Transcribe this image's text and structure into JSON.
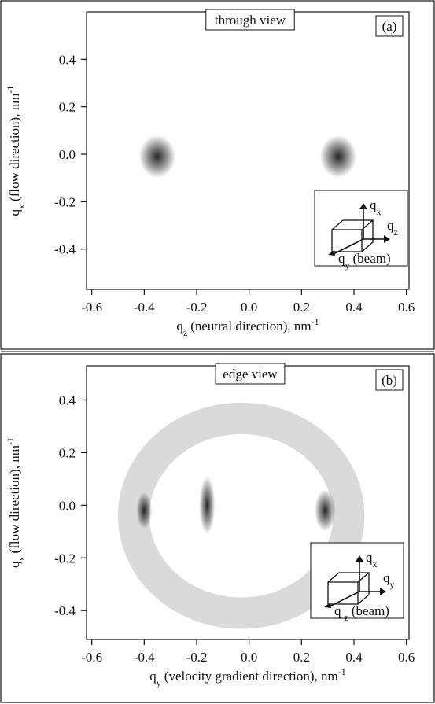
{
  "chart_data": [
    {
      "type": "heatmap",
      "title": "through view",
      "panel_label": "(a)",
      "color": "#1a1a1a",
      "xlabel": {
        "symbol": "q",
        "subscript": "z",
        "text": "(neutral direction), nm",
        "superscript": "-1"
      },
      "ylabel": {
        "symbol": "q",
        "subscript": "x",
        "text": "(flow direction), nm",
        "superscript": "-1"
      },
      "xlim": [
        -0.62,
        0.61
      ],
      "ylim": [
        -0.57,
        0.6
      ],
      "xticks": [
        -0.6,
        -0.4,
        -0.2,
        {
          "value": 0,
          "label": "0.0"
        },
        0.2,
        0.4,
        0.6
      ],
      "yticks": [
        -0.4,
        -0.2,
        {
          "value": 0,
          "label": "0.0"
        },
        0.2,
        0.4
      ],
      "spots": [
        {
          "x": -0.35,
          "y": -0.01,
          "rx": 0.07,
          "ry": 0.09
        },
        {
          "x": 0.34,
          "y": -0.01,
          "rx": 0.07,
          "ry": 0.09
        }
      ],
      "rings": [],
      "inset": {
        "labels": [
          {
            "symbol": "q",
            "subscript": "x"
          },
          {
            "symbol": "q",
            "subscript": "z"
          },
          {
            "symbol": "q",
            "subscript": "y",
            "note": "(beam)"
          }
        ]
      }
    },
    {
      "type": "heatmap",
      "title": "edge view",
      "panel_label": "(b)",
      "color": "#1a1a1a",
      "xlabel": {
        "symbol": "q",
        "subscript": "y",
        "text": "(velocity gradient direction), nm",
        "superscript": "-1"
      },
      "ylabel": {
        "symbol": "q",
        "subscript": "x",
        "text": "(flow direction),  nm",
        "superscript": "-1"
      },
      "xlim": [
        -0.62,
        0.61
      ],
      "ylim": [
        -0.51,
        0.53
      ],
      "xticks": [
        -0.6,
        -0.4,
        -0.2,
        {
          "value": 0,
          "label": "0.0"
        },
        0.2,
        0.4,
        0.6
      ],
      "yticks": [
        -0.4,
        -0.2,
        {
          "value": 0,
          "label": "0.0"
        },
        0.2,
        0.4
      ],
      "spots": [
        {
          "x": -0.4,
          "y": -0.02,
          "rx": 0.03,
          "ry": 0.07
        },
        {
          "x": 0.29,
          "y": -0.02,
          "rx": 0.04,
          "ry": 0.08
        },
        {
          "x": -0.16,
          "y": 0.0,
          "rx": 0.03,
          "ry": 0.11
        }
      ],
      "rings": [
        {
          "x": -0.03,
          "y": -0.04,
          "rx": 0.41,
          "ry": 0.37,
          "width": 0.12
        }
      ],
      "inset": {
        "labels": [
          {
            "symbol": "q",
            "subscript": "x"
          },
          {
            "symbol": "q",
            "subscript": "y"
          },
          {
            "symbol": "q",
            "subscript": "-z",
            "note": "(beam)"
          }
        ]
      }
    }
  ]
}
